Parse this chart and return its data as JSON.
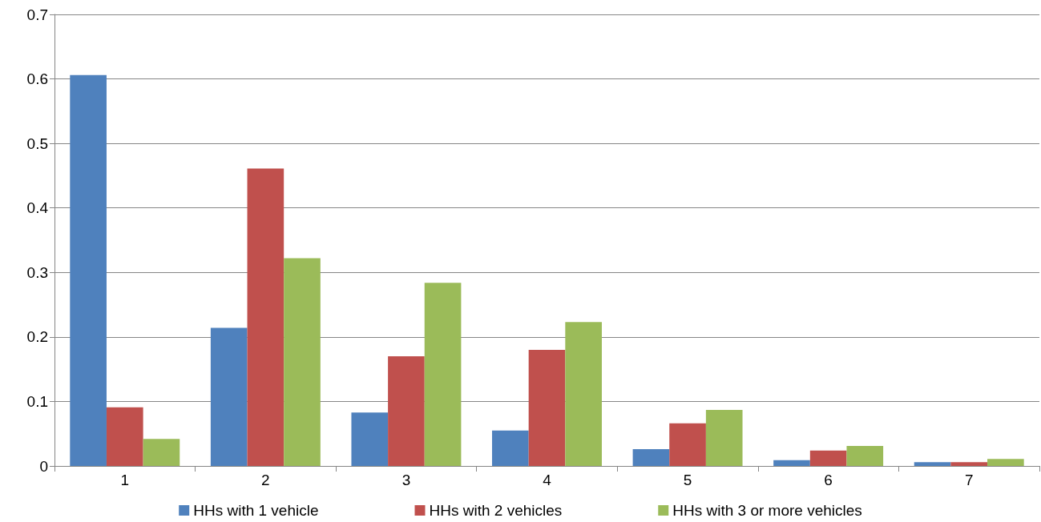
{
  "chart_data": {
    "type": "bar",
    "categories": [
      "1",
      "2",
      "3",
      "4",
      "5",
      "6",
      "7"
    ],
    "series": [
      {
        "name": "HHs with 1 vehicle",
        "color": "#4f81bd",
        "values": [
          0.606,
          0.214,
          0.083,
          0.055,
          0.026,
          0.009,
          0.006
        ]
      },
      {
        "name": "HHs with 2 vehicles",
        "color": "#c0504d",
        "values": [
          0.091,
          0.461,
          0.17,
          0.18,
          0.066,
          0.024,
          0.006
        ]
      },
      {
        "name": "HHs with 3 or more vehicles",
        "color": "#9bbb59",
        "values": [
          0.042,
          0.322,
          0.284,
          0.223,
          0.087,
          0.031,
          0.011
        ]
      }
    ],
    "ylim": [
      0,
      0.7
    ],
    "yticks": [
      0,
      0.1,
      0.2,
      0.3,
      0.4,
      0.5,
      0.6,
      0.7
    ],
    "grid": "y",
    "legend": "bottom"
  }
}
